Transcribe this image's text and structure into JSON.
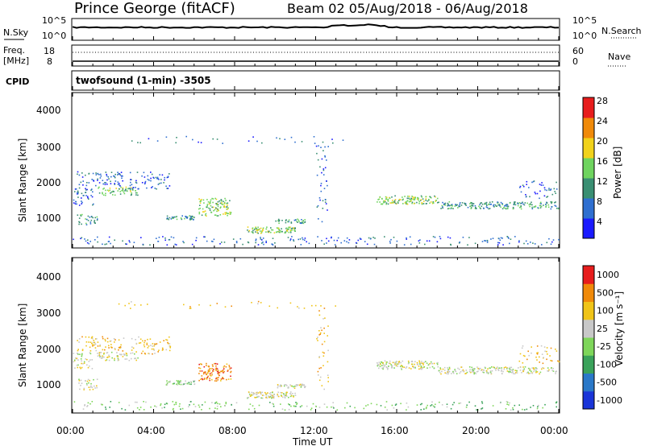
{
  "header": {
    "station": "Prince George (fitACF)",
    "beam_dates": "Beam 02  05/Aug/2018 - 06/Aug/2018"
  },
  "noise_panel": {
    "left_label": "N.Sky",
    "right_label": "N.Search",
    "ticks": [
      "10^5",
      "10^0"
    ],
    "right_ticks": [
      "10^5",
      "10^0"
    ]
  },
  "freq_panel": {
    "left_label_1": "Freq.",
    "left_label_2": "[MHz]",
    "left_ticks": [
      "18",
      "8"
    ],
    "right_ticks": [
      "60",
      "0"
    ],
    "right_label": "Nave"
  },
  "cpid_panel": {
    "left_label": "CPID",
    "program": "twofsound (1-min) -3505"
  },
  "chart_data": [
    {
      "type": "heatmap",
      "name": "power",
      "ylabel": "Slant Range [km]",
      "yticks": [
        "1000",
        "2000",
        "3000",
        "4000"
      ],
      "colorbar_label": "Power [dB]",
      "colorbar_ticks": [
        "4",
        "8",
        "12",
        "16",
        "20",
        "24",
        "28"
      ],
      "colors": [
        "#1a1aff",
        "#2f6fd0",
        "#3a8f73",
        "#6fd45f",
        "#f1d21b",
        "#f08a0a",
        "#e71d1d"
      ]
    },
    {
      "type": "heatmap",
      "name": "velocity",
      "ylabel": "Slant Range [km]",
      "yticks": [
        "1000",
        "2000",
        "3000",
        "4000"
      ],
      "colorbar_label": "Velocity [m s⁻¹]",
      "colorbar_ticks": [
        "1000",
        "500",
        "100",
        "25",
        "-25",
        "-100",
        "-500",
        "-1000"
      ],
      "colors": [
        "#1a35d8",
        "#2a78c8",
        "#3aa25a",
        "#7ed65a",
        "#c8c8c8",
        "#f0c418",
        "#f08a0a",
        "#e71d1d"
      ]
    }
  ],
  "xaxis": {
    "ticks": [
      "00:00",
      "04:00",
      "08:00",
      "12:00",
      "16:00",
      "20:00",
      "00:00"
    ],
    "label": "Time UT"
  }
}
